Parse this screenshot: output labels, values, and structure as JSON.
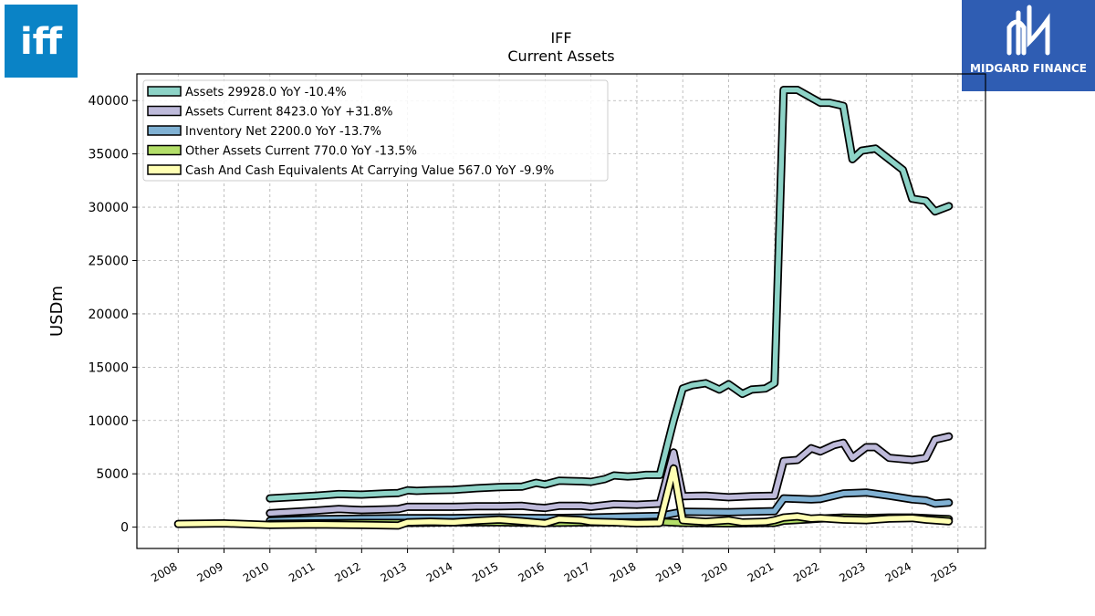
{
  "header": {
    "brand_logo_text": "iff",
    "partner_logo_text": "MIDGARD FINANCE"
  },
  "chart_data": {
    "type": "line",
    "title": "IFF",
    "subtitle": "Current  Assets",
    "ylabel": "USDm",
    "xlabel": "",
    "xlim": [
      2007.1,
      2025.6
    ],
    "ylim": [
      -2000,
      42500
    ],
    "xticks": [
      2008,
      2009,
      2010,
      2011,
      2012,
      2013,
      2014,
      2015,
      2016,
      2017,
      2018,
      2019,
      2020,
      2021,
      2022,
      2023,
      2024,
      2025
    ],
    "yticks": [
      0,
      5000,
      10000,
      15000,
      20000,
      25000,
      30000,
      35000,
      40000
    ],
    "grid": true,
    "legend_position": "top-left",
    "series": [
      {
        "name": "Assets  29928.0 YoY -10.4%",
        "color": "#8dd3c7",
        "points": [
          [
            2010.0,
            2700
          ],
          [
            2011.0,
            2950
          ],
          [
            2011.5,
            3100
          ],
          [
            2012.0,
            3050
          ],
          [
            2012.5,
            3150
          ],
          [
            2012.8,
            3200
          ],
          [
            2013.0,
            3450
          ],
          [
            2013.2,
            3400
          ],
          [
            2013.5,
            3450
          ],
          [
            2014.0,
            3500
          ],
          [
            2014.5,
            3650
          ],
          [
            2015.0,
            3750
          ],
          [
            2015.5,
            3800
          ],
          [
            2015.8,
            4150
          ],
          [
            2016.0,
            4000
          ],
          [
            2016.3,
            4350
          ],
          [
            2016.8,
            4300
          ],
          [
            2017.0,
            4250
          ],
          [
            2017.3,
            4500
          ],
          [
            2017.5,
            4850
          ],
          [
            2017.8,
            4750
          ],
          [
            2018.0,
            4800
          ],
          [
            2018.2,
            4900
          ],
          [
            2018.5,
            4900
          ],
          [
            2018.8,
            10000
          ],
          [
            2019.0,
            13000
          ],
          [
            2019.2,
            13300
          ],
          [
            2019.5,
            13500
          ],
          [
            2019.8,
            12900
          ],
          [
            2020.0,
            13400
          ],
          [
            2020.3,
            12500
          ],
          [
            2020.5,
            12900
          ],
          [
            2020.8,
            13000
          ],
          [
            2021.0,
            13500
          ],
          [
            2021.2,
            41000
          ],
          [
            2021.5,
            41000
          ],
          [
            2022.0,
            39800
          ],
          [
            2022.2,
            39800
          ],
          [
            2022.5,
            39500
          ],
          [
            2022.7,
            34500
          ],
          [
            2022.9,
            35300
          ],
          [
            2023.2,
            35500
          ],
          [
            2023.8,
            33500
          ],
          [
            2024.0,
            30800
          ],
          [
            2024.3,
            30600
          ],
          [
            2024.5,
            29600
          ],
          [
            2024.8,
            30100
          ]
        ]
      },
      {
        "name": "Assets Current  8423.0 YoY +31.8%",
        "color": "#bebada",
        "points": [
          [
            2010.0,
            1300
          ],
          [
            2011.0,
            1550
          ],
          [
            2011.5,
            1700
          ],
          [
            2012.0,
            1600
          ],
          [
            2012.5,
            1650
          ],
          [
            2012.8,
            1700
          ],
          [
            2013.0,
            1900
          ],
          [
            2013.5,
            1900
          ],
          [
            2014.0,
            1900
          ],
          [
            2014.5,
            1950
          ],
          [
            2015.0,
            1950
          ],
          [
            2015.5,
            2000
          ],
          [
            2015.8,
            1850
          ],
          [
            2016.0,
            1800
          ],
          [
            2016.3,
            2000
          ],
          [
            2016.8,
            2000
          ],
          [
            2017.0,
            1900
          ],
          [
            2017.5,
            2150
          ],
          [
            2018.0,
            2100
          ],
          [
            2018.5,
            2200
          ],
          [
            2018.8,
            7000
          ],
          [
            2019.0,
            2900
          ],
          [
            2019.5,
            2950
          ],
          [
            2020.0,
            2800
          ],
          [
            2020.5,
            2900
          ],
          [
            2021.0,
            2950
          ],
          [
            2021.2,
            6200
          ],
          [
            2021.5,
            6300
          ],
          [
            2021.8,
            7400
          ],
          [
            2022.0,
            7100
          ],
          [
            2022.3,
            7700
          ],
          [
            2022.5,
            7900
          ],
          [
            2022.7,
            6500
          ],
          [
            2023.0,
            7500
          ],
          [
            2023.2,
            7500
          ],
          [
            2023.5,
            6500
          ],
          [
            2024.0,
            6300
          ],
          [
            2024.3,
            6500
          ],
          [
            2024.5,
            8200
          ],
          [
            2024.8,
            8500
          ]
        ]
      },
      {
        "name": "Inventory Net  2200.0 YoY -13.7%",
        "color": "#80b1d3",
        "points": [
          [
            2010.0,
            600
          ],
          [
            2011.0,
            750
          ],
          [
            2012.0,
            800
          ],
          [
            2013.0,
            850
          ],
          [
            2014.0,
            850
          ],
          [
            2015.0,
            900
          ],
          [
            2016.0,
            850
          ],
          [
            2017.0,
            900
          ],
          [
            2018.0,
            1000
          ],
          [
            2018.5,
            1050
          ],
          [
            2019.0,
            1450
          ],
          [
            2020.0,
            1400
          ],
          [
            2021.0,
            1500
          ],
          [
            2021.2,
            2700
          ],
          [
            2021.8,
            2600
          ],
          [
            2022.0,
            2650
          ],
          [
            2022.5,
            3150
          ],
          [
            2023.0,
            3250
          ],
          [
            2023.5,
            2950
          ],
          [
            2024.0,
            2600
          ],
          [
            2024.3,
            2500
          ],
          [
            2024.5,
            2200
          ],
          [
            2024.8,
            2300
          ]
        ]
      },
      {
        "name": "Other Assets Current  770.0 YoY -13.5%",
        "color": "#b3de69",
        "points": [
          [
            2010.0,
            300
          ],
          [
            2011.0,
            350
          ],
          [
            2012.0,
            400
          ],
          [
            2013.0,
            400
          ],
          [
            2014.0,
            450
          ],
          [
            2015.0,
            450
          ],
          [
            2016.0,
            400
          ],
          [
            2017.0,
            450
          ],
          [
            2018.0,
            450
          ],
          [
            2018.5,
            500
          ],
          [
            2019.0,
            400
          ],
          [
            2020.0,
            350
          ],
          [
            2021.0,
            400
          ],
          [
            2021.2,
            600
          ],
          [
            2022.0,
            800
          ],
          [
            2022.5,
            900
          ],
          [
            2023.0,
            850
          ],
          [
            2023.5,
            900
          ],
          [
            2024.0,
            900
          ],
          [
            2024.5,
            800
          ],
          [
            2024.8,
            750
          ]
        ]
      },
      {
        "name": "Cash And Cash Equivalents At Carrying Value  567.0 YoY -9.9%",
        "color": "#ffffb3",
        "points": [
          [
            2008.0,
            300
          ],
          [
            2009.0,
            350
          ],
          [
            2010.0,
            200
          ],
          [
            2011.0,
            250
          ],
          [
            2012.0,
            200
          ],
          [
            2012.8,
            150
          ],
          [
            2013.0,
            450
          ],
          [
            2013.5,
            500
          ],
          [
            2014.0,
            450
          ],
          [
            2014.5,
            600
          ],
          [
            2015.0,
            700
          ],
          [
            2015.5,
            550
          ],
          [
            2016.0,
            350
          ],
          [
            2016.3,
            750
          ],
          [
            2016.8,
            650
          ],
          [
            2017.0,
            500
          ],
          [
            2017.5,
            450
          ],
          [
            2018.0,
            350
          ],
          [
            2018.5,
            400
          ],
          [
            2018.8,
            5500
          ],
          [
            2019.0,
            650
          ],
          [
            2019.5,
            500
          ],
          [
            2020.0,
            650
          ],
          [
            2020.3,
            450
          ],
          [
            2020.8,
            500
          ],
          [
            2021.0,
            650
          ],
          [
            2021.2,
            900
          ],
          [
            2021.5,
            1000
          ],
          [
            2021.8,
            800
          ],
          [
            2022.0,
            850
          ],
          [
            2022.5,
            700
          ],
          [
            2023.0,
            650
          ],
          [
            2023.5,
            800
          ],
          [
            2024.0,
            850
          ],
          [
            2024.3,
            700
          ],
          [
            2024.8,
            550
          ]
        ]
      }
    ]
  }
}
